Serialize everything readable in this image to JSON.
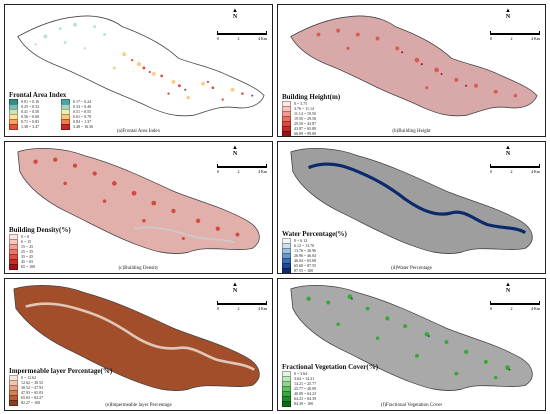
{
  "panels": [
    {
      "id": "a",
      "caption": "(a)Frontal Area Index",
      "legend_title": "Frontal Area Index",
      "classes": [
        {
          "label": "0.01 ~ 0.16",
          "color": "#2f8f83"
        },
        {
          "label": "0.17 ~ 0.24",
          "color": "#4aa6a6"
        },
        {
          "label": "0.25 ~ 0.32",
          "color": "#74bfbf"
        },
        {
          "label": "0.33 ~ 0.40",
          "color": "#a3d5c7"
        },
        {
          "label": "0.41 ~ 0.50",
          "color": "#c9e6b6"
        },
        {
          "label": "0.51 ~ 0.55",
          "color": "#e9f2a8"
        },
        {
          "label": "0.56 ~ 0.60",
          "color": "#fde29a"
        },
        {
          "label": "0.61 ~ 0.70",
          "color": "#fcc77d"
        },
        {
          "label": "0.71 ~ 0.83",
          "color": "#f9a35f"
        },
        {
          "label": "0.84 ~ 1.37",
          "color": "#f07c48"
        },
        {
          "label": "1.38 ~ 3.47",
          "color": "#e0533a"
        },
        {
          "label": "3.48 ~ 16.36",
          "color": "#c3262b"
        }
      ]
    },
    {
      "id": "b",
      "caption": "(b)Building Height",
      "legend_title": "Building Height(m)",
      "classes": [
        {
          "label": "0 ~ 3.75",
          "color": "#fde7e4"
        },
        {
          "label": "3.76 ~ 11.14",
          "color": "#f9c2bb"
        },
        {
          "label": "11.14 ~ 19.50",
          "color": "#f29a90"
        },
        {
          "label": "19.50 ~ 29.50",
          "color": "#e87266"
        },
        {
          "label": "29.50 ~ 43.87",
          "color": "#d84a40"
        },
        {
          "label": "43.87 ~ 65.89",
          "color": "#c02a24"
        },
        {
          "label": "66.89 ~ 99.00",
          "color": "#9a1212"
        }
      ]
    },
    {
      "id": "c",
      "caption": "(c)Building Density",
      "legend_title": "Building Density(%)",
      "classes": [
        {
          "label": "0 ~ 6",
          "color": "#fde7e4"
        },
        {
          "label": "6 ~ 15",
          "color": "#f8c4bd"
        },
        {
          "label": "15 ~ 25",
          "color": "#f29e94"
        },
        {
          "label": "25 ~ 35",
          "color": "#e9776b"
        },
        {
          "label": "35 ~ 45",
          "color": "#dc5044"
        },
        {
          "label": "45 ~ 65",
          "color": "#c72d26"
        },
        {
          "label": "65 ~ 100",
          "color": "#a11515"
        }
      ]
    },
    {
      "id": "d",
      "caption": "(d)Water Percentage",
      "legend_title": "Water Percentage(%)",
      "classes": [
        {
          "label": "0 ~ 6.12",
          "color": "#f3f6fb"
        },
        {
          "label": "6.12 ~ 13.76",
          "color": "#cfdff0"
        },
        {
          "label": "13.76 ~ 26.96",
          "color": "#9ec0e0"
        },
        {
          "label": "26.96 ~ 46.04",
          "color": "#6a99cc"
        },
        {
          "label": "46.04 ~ 65.68",
          "color": "#3b6db3"
        },
        {
          "label": "65.68 ~ 87.55",
          "color": "#1d4894"
        },
        {
          "label": "87.55 ~ 100",
          "color": "#0b2a6b"
        }
      ]
    },
    {
      "id": "e",
      "caption": "(e)Impermeable layer Percentage",
      "legend_title": "Impermeable layer Percentage(%)",
      "classes": [
        {
          "label": "0 ~ 12.62",
          "color": "#fbe7dc"
        },
        {
          "label": "12.62 ~ 30.52",
          "color": "#f2c7b1"
        },
        {
          "label": "30.52 ~ 47.93",
          "color": "#e5a383"
        },
        {
          "label": "47.93 ~ 65.03",
          "color": "#d27f5a"
        },
        {
          "label": "65.03 ~ 82.27",
          "color": "#b85c38"
        },
        {
          "label": "82.27 ~ 100",
          "color": "#8e3b20"
        }
      ]
    },
    {
      "id": "f",
      "caption": "(f)Fractional Vegetation Cover",
      "legend_title": "Fractional Vegetation Cover(%)",
      "classes": [
        {
          "label": "0 ~ 3.64",
          "color": "#e4f5e4"
        },
        {
          "label": "3.64 ~ 14.21",
          "color": "#bfe7bd"
        },
        {
          "label": "14.21 ~ 25.77",
          "color": "#93d690"
        },
        {
          "label": "25.77 ~ 40.09",
          "color": "#62c261"
        },
        {
          "label": "40.09 ~ 64.23",
          "color": "#38a83a"
        },
        {
          "label": "64.23 ~ 84.39",
          "color": "#1f8b27"
        },
        {
          "label": "84.39 ~ 100",
          "color": "#0d6a16"
        }
      ]
    }
  ],
  "north_label": "N",
  "scale_labels": [
    "0",
    "2",
    "4 Km"
  ]
}
